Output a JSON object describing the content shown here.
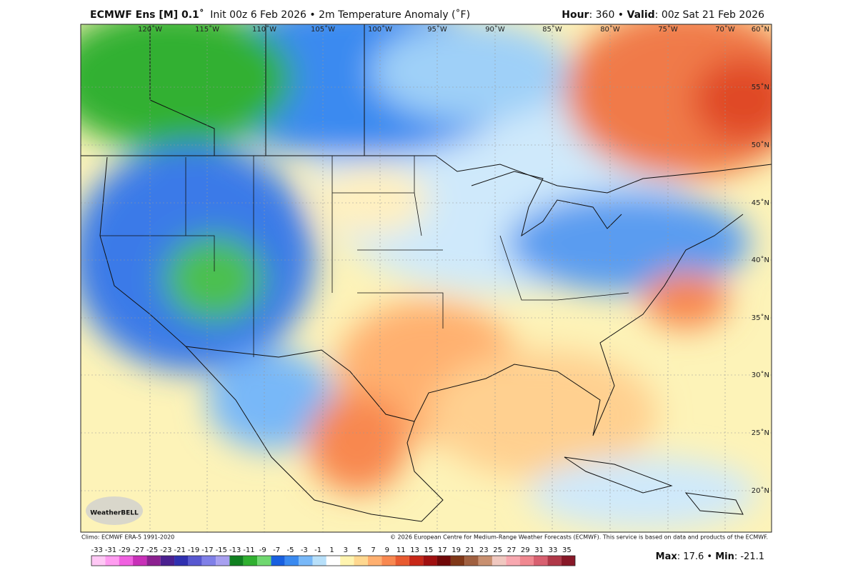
{
  "header": {
    "model": "ECMWF Ens [M] 0.1˚",
    "description": "Init 00z 6 Feb 2026 • 2m Temperature Anomaly (˚F)",
    "hour_label": "Hour",
    "hour_value": ": 360 •",
    "valid_label": "Valid",
    "valid_value": ": 00z Sat 21 Feb 2026"
  },
  "map": {
    "longitude_labels": [
      "120˚W",
      "115˚W",
      "110˚W",
      "105˚W",
      "100˚W",
      "95˚W",
      "90˚W",
      "85˚W",
      "80˚W",
      "75˚W",
      "70˚W"
    ],
    "latitude_labels": [
      "60˚N",
      "55˚N",
      "50˚N",
      "45˚N",
      "40˚N",
      "35˚N",
      "30˚N",
      "25˚N",
      "20˚N"
    ],
    "logo": "WeatherBELL"
  },
  "footer": {
    "climo": "Climo: ECMWF ERA-5 1991-2020",
    "copyright": "© 2026 European Centre for Medium-Range Weather Forecasts (ECMWF). This service is based on data and products of the ECMWF."
  },
  "colorbar": {
    "labels": [
      -33,
      -31,
      -29,
      -27,
      -25,
      -23,
      -21,
      -19,
      -17,
      -15,
      -13,
      -11,
      -9,
      -7,
      -5,
      -3,
      -1,
      1,
      3,
      5,
      7,
      9,
      11,
      13,
      15,
      17,
      19,
      21,
      23,
      25,
      27,
      29,
      31,
      33,
      35
    ],
    "colors": [
      "#ffc8f5",
      "#ff9cf0",
      "#f060e0",
      "#c830b8",
      "#8c2090",
      "#4b2090",
      "#3030b0",
      "#5858d0",
      "#8080e8",
      "#a8a0f0",
      "#108020",
      "#30b030",
      "#70d870",
      "#1860e0",
      "#3a8af0",
      "#78b8f8",
      "#b8e0fa",
      "#ffffff",
      "#fff4b0",
      "#ffd890",
      "#ffb070",
      "#f88850",
      "#e85a30",
      "#c82818",
      "#a01010",
      "#700808",
      "#803818",
      "#a06040",
      "#c89070",
      "#f0c8c0",
      "#f8a8b0",
      "#f08890",
      "#d86070",
      "#b03848",
      "#881828"
    ]
  },
  "stats": {
    "max_label": "Max",
    "max_value": ": 17.6 •",
    "min_label": "Min",
    "min_value": ": -21.1"
  }
}
